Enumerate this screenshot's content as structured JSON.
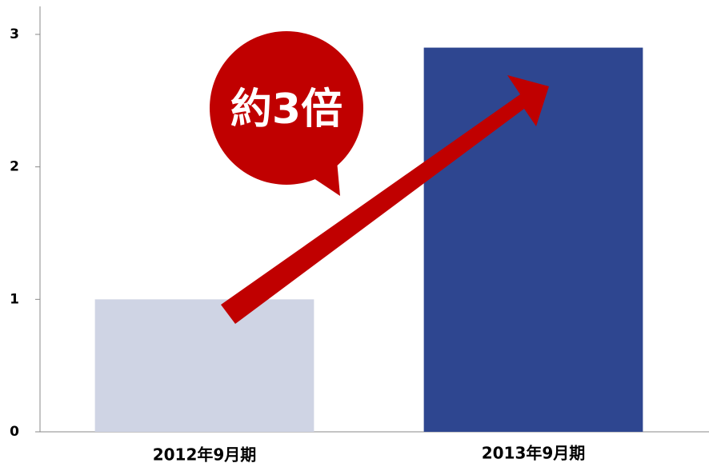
{
  "chart_data": {
    "type": "bar",
    "categories": [
      "2012年9月期",
      "2013年9月期"
    ],
    "values": [
      1,
      2.9
    ],
    "colors": [
      "#cfd4e4",
      "#2e4690"
    ],
    "ylim": [
      0,
      3
    ],
    "yticks": [
      0,
      1,
      2,
      3
    ],
    "grid": false,
    "annotation": "約3倍"
  }
}
